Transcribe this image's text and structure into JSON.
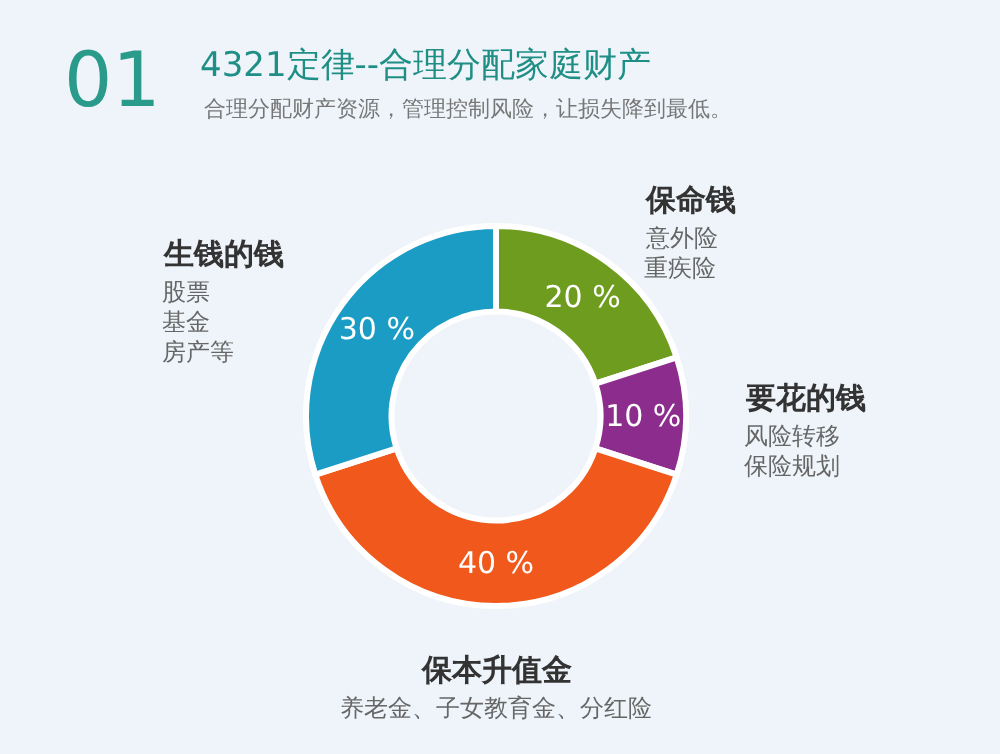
{
  "chart_data": {
    "type": "donut",
    "title": "4321定律--合理分配家庭财产",
    "subtitle": "合理分配财产资源，管理控制风险，让损失降到最低。",
    "categories": [
      "保命钱",
      "要花的钱",
      "保本升值金",
      "生钱的钱"
    ],
    "values": [
      20,
      10,
      40,
      30
    ],
    "value_labels": [
      "20 %",
      "10 %",
      "40 %",
      "30 %"
    ],
    "colors": [
      "#6e9c1e",
      "#8c2d8e",
      "#f0581c",
      "#1a9cc4"
    ],
    "annotations": [
      "01",
      "意外险",
      "重疾险",
      "风险转移",
      "保险规划",
      "养老金、子女教育金、分红险",
      "股票",
      "基金",
      "房产等"
    ]
  }
}
